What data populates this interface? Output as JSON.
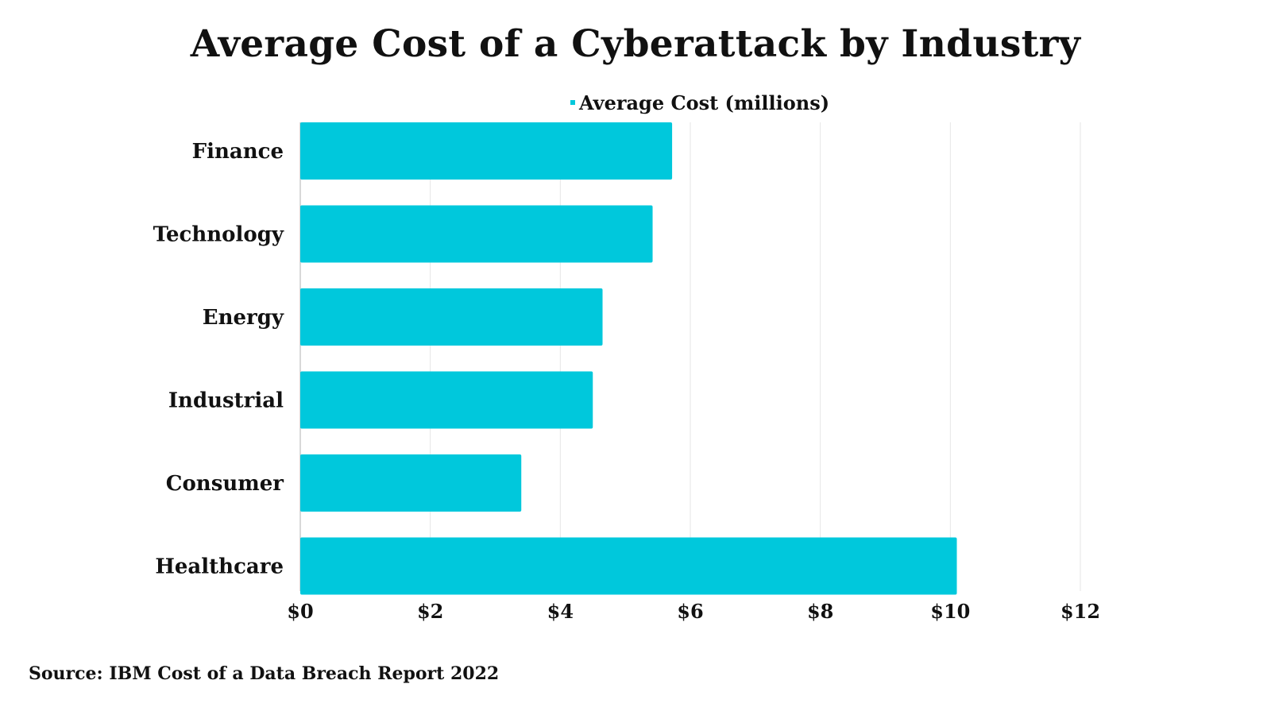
{
  "chart_data": {
    "type": "bar",
    "orientation": "horizontal",
    "title": "Average Cost of a Cyberattack by Industry",
    "categories": [
      "Finance",
      "Technology",
      "Energy",
      "Industrial",
      "Consumer",
      "Healthcare"
    ],
    "series": [
      {
        "name": "Average Cost (millions)",
        "values": [
          5.72,
          5.42,
          4.65,
          4.5,
          3.4,
          10.1
        ],
        "color": "#00c8dc"
      }
    ],
    "xlim": [
      0,
      12
    ],
    "x_ticks": [
      0,
      2,
      4,
      6,
      8,
      10,
      12
    ],
    "x_tick_labels": [
      "$0",
      "$2",
      "$4",
      "$6",
      "$8",
      "$10",
      "$12"
    ],
    "grid": "vertical",
    "legend_position": "top-center",
    "source": "Source: IBM Cost of a Data Breach Report 2022"
  }
}
